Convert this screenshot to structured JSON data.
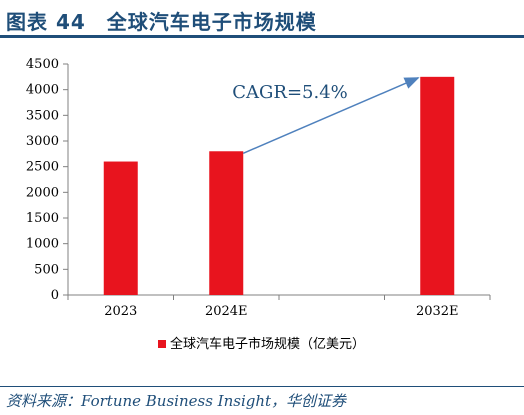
{
  "header": {
    "title": "图表 44　全球汽车电子市场规模"
  },
  "footer": {
    "source": "资料来源：Fortune Business Insight，华创证券"
  },
  "chart_data": {
    "type": "bar",
    "categories": [
      "2023",
      "2024E",
      "",
      "2032E"
    ],
    "values": [
      2600,
      2800,
      null,
      4250
    ],
    "series": [
      {
        "name": "全球汽车电子市场规模（亿美元）",
        "values": [
          2600,
          2800,
          null,
          4250
        ]
      }
    ],
    "ylim": [
      0,
      4500
    ],
    "yticks": [
      0,
      500,
      1000,
      1500,
      2000,
      2500,
      3000,
      3500,
      4000,
      4500
    ],
    "annotation": "CAGR=5.4%",
    "legend_position": "bottom",
    "grid": false,
    "colors": {
      "bar": "#e8141e",
      "arrow": "#4f81bd",
      "axis": "#808080",
      "text": "#000000",
      "annotation": "#1f4e79"
    }
  }
}
